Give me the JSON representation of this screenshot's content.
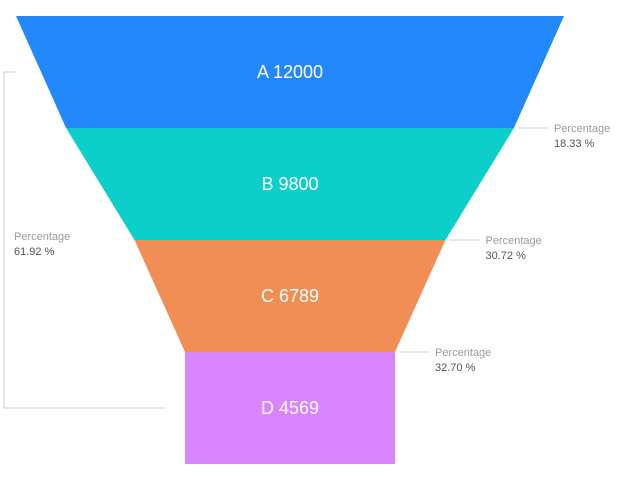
{
  "chart_data": {
    "type": "funnel",
    "stages": [
      {
        "name": "A",
        "value": 12000,
        "color": "#2388fb"
      },
      {
        "name": "B",
        "value": 9800,
        "color": "#0dcfca"
      },
      {
        "name": "C",
        "value": 6789,
        "color": "#f08e55"
      },
      {
        "name": "D",
        "value": 4569,
        "color": "#d885fd"
      }
    ],
    "step_conversions": [
      {
        "title": "Percentage",
        "value": "18.33 %"
      },
      {
        "title": "Percentage",
        "value": "30.72 %"
      },
      {
        "title": "Percentage",
        "value": "32.70 %"
      }
    ],
    "overall_conversion": {
      "title": "Percentage",
      "value": "61.92 %"
    }
  }
}
